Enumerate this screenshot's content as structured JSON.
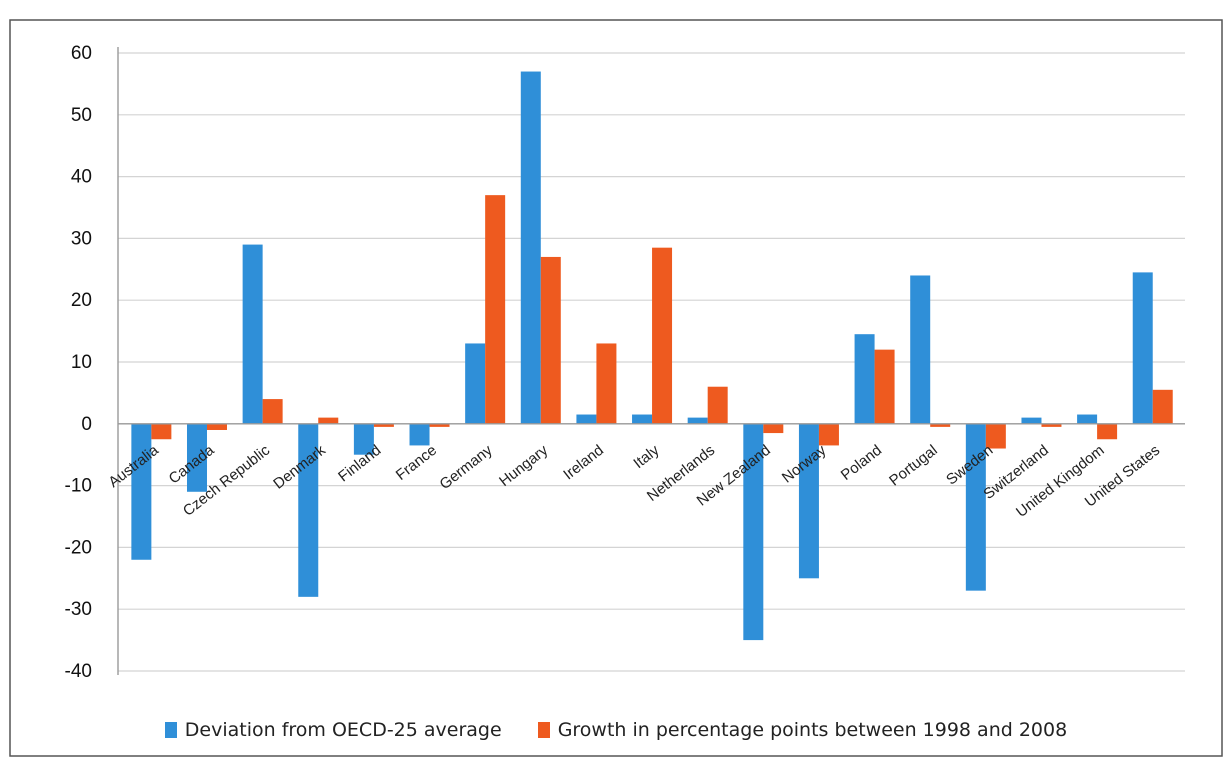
{
  "colors": {
    "series1": "#2f8fd8",
    "series2": "#ee5a1f",
    "grid": "#d4d4d4",
    "axis": "#9a9a9a",
    "frame": "#555555"
  },
  "chart_data": {
    "type": "bar",
    "title": "",
    "xlabel": "",
    "ylabel": "",
    "ylim": [
      -40,
      60
    ],
    "yticks": [
      60,
      50,
      40,
      30,
      20,
      10,
      0,
      -10,
      -20,
      -30,
      -40
    ],
    "grid": true,
    "legend_position": "bottom",
    "categories": [
      "Australia",
      "Canada",
      "Czech Republic",
      "Denmark",
      "Finland",
      "France",
      "Germany",
      "Hungary",
      "Ireland",
      "Italy",
      "Netherlands",
      "New Zealand",
      "Norway",
      "Poland",
      "Portugal",
      "Sweden",
      "Switzerland",
      "United Kingdom",
      "United States"
    ],
    "series": [
      {
        "name": "Deviation from OECD-25 average",
        "values": [
          -22,
          -11,
          29,
          -28,
          -5,
          -3.5,
          13,
          57,
          1.5,
          1.5,
          1,
          -35,
          -25,
          14.5,
          24,
          -27,
          1,
          1.5,
          24.5
        ]
      },
      {
        "name": "Growth in percentage points between 1998 and 2008",
        "values": [
          -2.5,
          -1,
          4,
          1,
          -0.5,
          -0.5,
          37,
          27,
          13,
          28.5,
          6,
          -1.5,
          -3.5,
          12,
          -0.5,
          -4,
          -0.5,
          -2.5,
          5.5
        ]
      }
    ]
  }
}
